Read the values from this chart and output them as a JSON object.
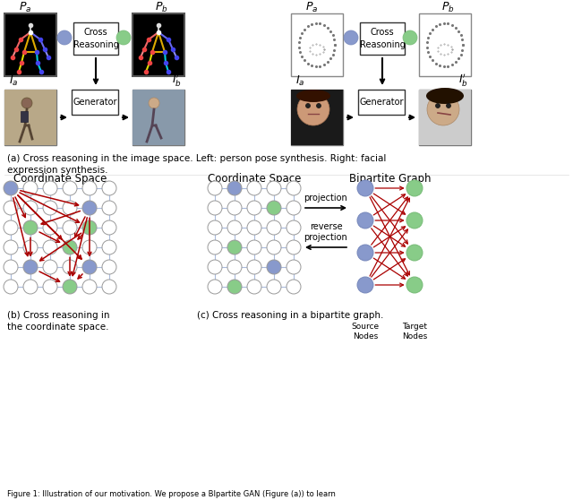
{
  "fig_width": 6.4,
  "fig_height": 5.58,
  "dpi": 100,
  "bg_color": "#ffffff",
  "title_a": "(a) Cross reasoning in the image space. Left: person pose synthesis. Right: facial\nexpression synthesis.",
  "title_b": "(b) Cross reasoning in\nthe coordinate space.",
  "title_c": "(c) Cross reasoning in a bipartite graph.",
  "coord_title1": "Coordinate Space",
  "coord_title2": "Coordinate Space",
  "bipartite_title": "Bipartite Graph",
  "blue_color": "#8899cc",
  "green_color": "#88cc88",
  "red_color": "#aa0000",
  "grid_line_color": "#aabbdd",
  "arrow_color": "#aa0000"
}
